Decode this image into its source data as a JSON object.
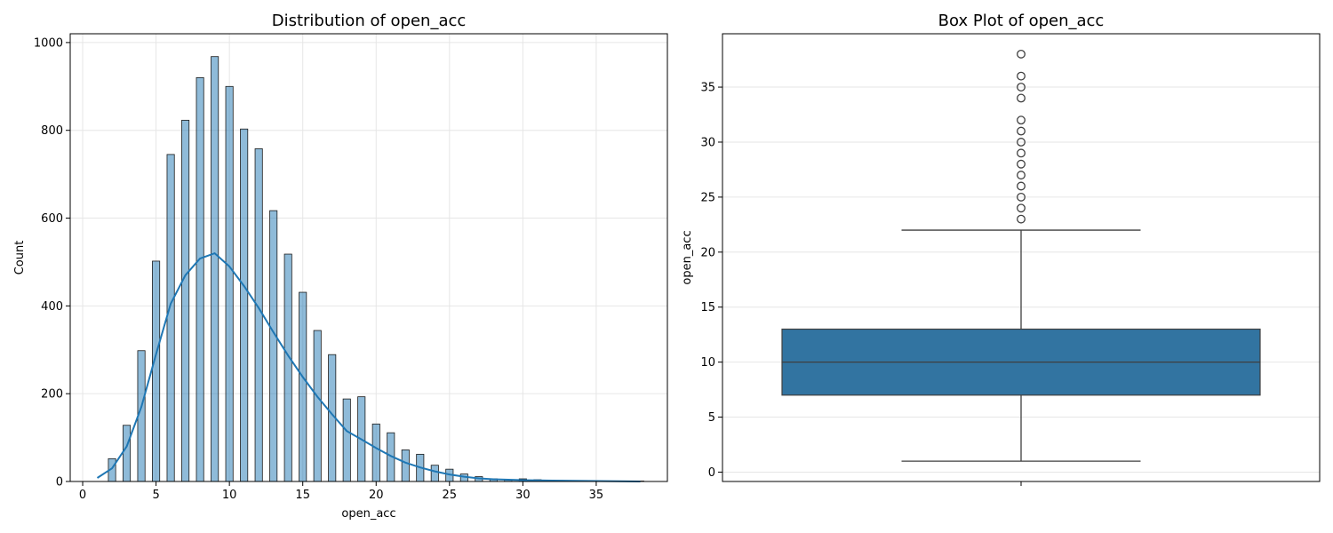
{
  "chart_data": [
    {
      "type": "bar",
      "title": "Distribution of open_acc",
      "xlabel": "open_acc",
      "ylabel": "Count",
      "xlim": [
        -0.85,
        39.85
      ],
      "ylim": [
        0,
        1020
      ],
      "xticks": [
        0,
        5,
        10,
        15,
        20,
        25,
        30,
        35
      ],
      "yticks": [
        0,
        200,
        400,
        600,
        800,
        1000
      ],
      "grid": true,
      "bin_width": 0.5,
      "bins": [
        {
          "x": 2,
          "count": 52
        },
        {
          "x": 3,
          "count": 128
        },
        {
          "x": 4,
          "count": 298
        },
        {
          "x": 5,
          "count": 502
        },
        {
          "x": 6,
          "count": 745
        },
        {
          "x": 7,
          "count": 823
        },
        {
          "x": 8,
          "count": 920
        },
        {
          "x": 9,
          "count": 968
        },
        {
          "x": 10,
          "count": 900
        },
        {
          "x": 11,
          "count": 803
        },
        {
          "x": 12,
          "count": 758
        },
        {
          "x": 13,
          "count": 617
        },
        {
          "x": 14,
          "count": 518
        },
        {
          "x": 15,
          "count": 431
        },
        {
          "x": 16,
          "count": 344
        },
        {
          "x": 17,
          "count": 289
        },
        {
          "x": 18,
          "count": 188
        },
        {
          "x": 19,
          "count": 193
        },
        {
          "x": 20,
          "count": 131
        },
        {
          "x": 21,
          "count": 111
        },
        {
          "x": 22,
          "count": 72
        },
        {
          "x": 23,
          "count": 62
        },
        {
          "x": 24,
          "count": 37
        },
        {
          "x": 25,
          "count": 28
        },
        {
          "x": 26,
          "count": 17
        },
        {
          "x": 27,
          "count": 11
        },
        {
          "x": 28,
          "count": 6
        },
        {
          "x": 29,
          "count": 4
        },
        {
          "x": 30,
          "count": 6
        },
        {
          "x": 31,
          "count": 4
        },
        {
          "x": 32,
          "count": 2
        },
        {
          "x": 34,
          "count": 1
        },
        {
          "x": 35,
          "count": 1
        },
        {
          "x": 36,
          "count": 1
        },
        {
          "x": 38,
          "count": 1
        }
      ],
      "kde": {
        "x": [
          1,
          2,
          3,
          4,
          5,
          6,
          7,
          8,
          9,
          10,
          11,
          12,
          13,
          14,
          15,
          16,
          17,
          18,
          19,
          20,
          21,
          22,
          23,
          24,
          25,
          26,
          27,
          28,
          29,
          30,
          32,
          35,
          38
        ],
        "y": [
          8,
          30,
          80,
          170,
          290,
          405,
          470,
          508,
          520,
          490,
          445,
          395,
          340,
          287,
          238,
          193,
          153,
          115,
          96,
          76,
          58,
          43,
          32,
          23,
          16,
          11,
          7,
          5,
          4,
          3,
          2,
          1,
          0
        ]
      }
    },
    {
      "type": "box",
      "title": "Box Plot of open_acc",
      "ylabel": "open_acc",
      "ylim": [
        -0.85,
        39.85
      ],
      "yticks": [
        0,
        5,
        10,
        15,
        20,
        25,
        30,
        35
      ],
      "grid": true,
      "color": "#3274a1",
      "whisker_low": 1,
      "q1": 7,
      "median": 10,
      "q3": 13,
      "whisker_high": 22,
      "outliers": [
        23,
        24,
        25,
        26,
        27,
        28,
        29,
        30,
        31,
        32,
        34,
        35,
        36,
        38
      ]
    }
  ]
}
